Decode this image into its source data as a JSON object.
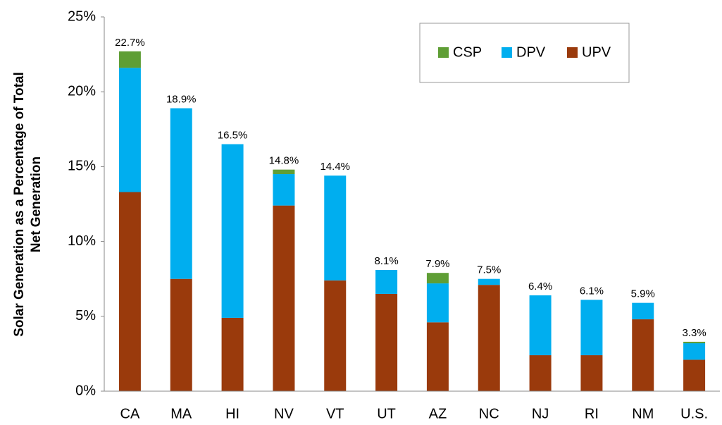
{
  "chart_data": {
    "type": "stacked_bar",
    "ylabel": [
      "Solar Generation as a Percentage of Total",
      "Net Generation"
    ],
    "categories": [
      "CA",
      "MA",
      "HI",
      "NV",
      "VT",
      "UT",
      "AZ",
      "NC",
      "NJ",
      "RI",
      "NM",
      "U.S."
    ],
    "series": [
      {
        "name": "UPV",
        "color": "#9a3a0c",
        "values": [
          13.3,
          7.5,
          4.9,
          12.4,
          7.4,
          6.5,
          4.6,
          7.1,
          2.4,
          2.4,
          4.8,
          2.1
        ]
      },
      {
        "name": "DPV",
        "color": "#00aeef",
        "values": [
          8.3,
          11.4,
          11.6,
          2.1,
          7.0,
          1.6,
          2.6,
          0.4,
          4.0,
          3.7,
          1.1,
          1.1
        ]
      },
      {
        "name": "CSP",
        "color": "#5f9e35",
        "values": [
          1.1,
          0,
          0,
          0.3,
          0,
          0,
          0.7,
          0,
          0,
          0,
          0,
          0.1
        ]
      }
    ],
    "totals": [
      22.7,
      18.9,
      16.5,
      14.8,
      14.4,
      8.1,
      7.9,
      7.5,
      6.4,
      6.1,
      5.9,
      3.3
    ],
    "total_labels": [
      "22.7%",
      "18.9%",
      "16.5%",
      "14.8%",
      "14.4%",
      "8.1%",
      "7.9%",
      "7.5%",
      "6.4%",
      "6.1%",
      "5.9%",
      "3.3%"
    ],
    "ylim": [
      0,
      25
    ],
    "yticks": [
      {
        "value": 0,
        "label": "0%"
      },
      {
        "value": 5,
        "label": "5%"
      },
      {
        "value": 10,
        "label": "10%"
      },
      {
        "value": 15,
        "label": "15%"
      },
      {
        "value": 20,
        "label": "20%"
      },
      {
        "value": 25,
        "label": "25%"
      }
    ],
    "legend": "top-right"
  }
}
